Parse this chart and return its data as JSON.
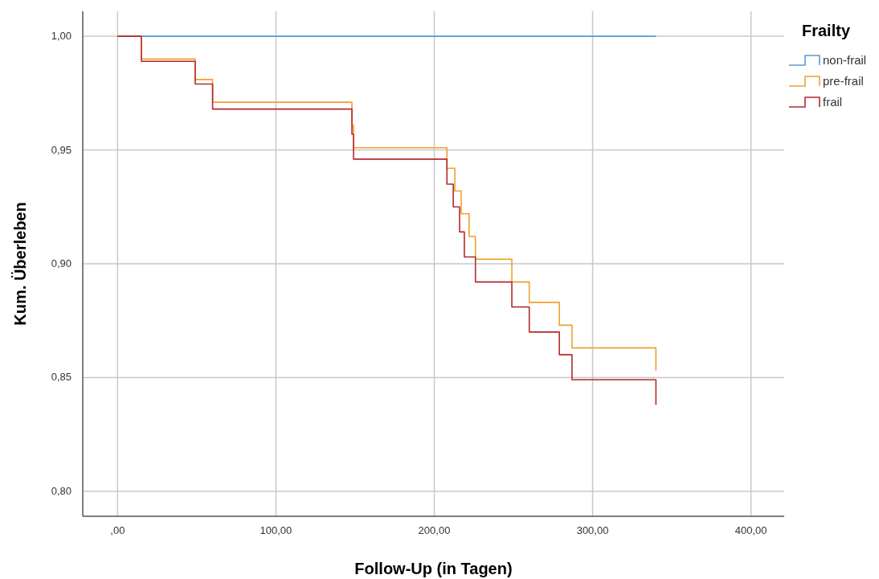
{
  "chart_data": {
    "type": "step",
    "xlabel": "Follow-Up (in Tagen)",
    "ylabel": "Kum. Überleben",
    "legend_title": "Frailty",
    "legend": "top right",
    "grid": true,
    "xlim": [
      -22,
      421
    ],
    "ylim": [
      0.789,
      1.011
    ],
    "xticks": [
      {
        "value": 0,
        "label": ",00"
      },
      {
        "value": 100,
        "label": "100,00"
      },
      {
        "value": 200,
        "label": "200,00"
      },
      {
        "value": 300,
        "label": "300,00"
      },
      {
        "value": 400,
        "label": "400,00"
      }
    ],
    "yticks": [
      {
        "value": 0.8,
        "label": "0,80"
      },
      {
        "value": 0.85,
        "label": "0,85"
      },
      {
        "value": 0.9,
        "label": "0,90"
      },
      {
        "value": 0.95,
        "label": "0,95"
      },
      {
        "value": 1,
        "label": "1,00"
      }
    ],
    "series": [
      {
        "name": "non-frail",
        "color": "#5b9bd5",
        "x": [
          0,
          340
        ],
        "values": [
          1,
          1
        ]
      },
      {
        "name": "pre-frail",
        "color": "#f0a030",
        "x": [
          0,
          15,
          49,
          60,
          148,
          149,
          208,
          213,
          217,
          222,
          226,
          249,
          260,
          279,
          287,
          340
        ],
        "values": [
          1,
          0.99,
          0.981,
          0.971,
          0.961,
          0.951,
          0.942,
          0.932,
          0.922,
          0.912,
          0.902,
          0.892,
          0.883,
          0.873,
          0.863,
          0.853
        ]
      },
      {
        "name": "frail",
        "color": "#b22a2e",
        "x": [
          0,
          15,
          49,
          60,
          148,
          149,
          208,
          212,
          216,
          219,
          226,
          249,
          260,
          279,
          287,
          340
        ],
        "values": [
          1,
          0.989,
          0.979,
          0.968,
          0.957,
          0.946,
          0.935,
          0.925,
          0.914,
          0.903,
          0.892,
          0.881,
          0.87,
          0.86,
          0.849,
          0.838
        ]
      }
    ]
  }
}
